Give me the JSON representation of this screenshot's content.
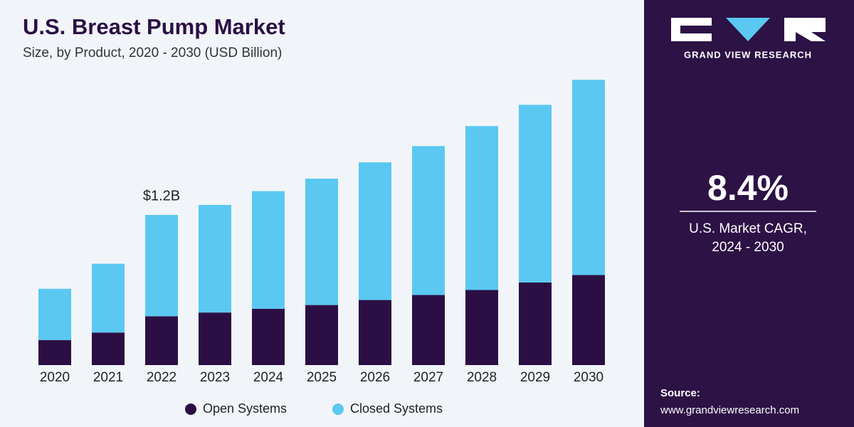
{
  "chart_data": {
    "type": "stacked_bar",
    "title": "U.S. Breast Pump Market",
    "subtitle": "Size, by Product, 2020 - 2030 (USD Billion)",
    "categories": [
      "2020",
      "2021",
      "2022",
      "2023",
      "2024",
      "2025",
      "2026",
      "2027",
      "2028",
      "2029",
      "2030"
    ],
    "series": [
      {
        "name": "Open Systems",
        "color": "#2b0f44",
        "values": [
          0.2,
          0.26,
          0.39,
          0.42,
          0.45,
          0.48,
          0.52,
          0.56,
          0.6,
          0.66,
          0.72
        ]
      },
      {
        "name": "Closed Systems",
        "color": "#5bc8f2",
        "values": [
          0.41,
          0.55,
          0.81,
          0.86,
          0.94,
          1.01,
          1.1,
          1.19,
          1.31,
          1.42,
          1.56
        ]
      }
    ],
    "annotations": [
      {
        "x": "2022",
        "value": 1.2,
        "label": "$1.2B"
      }
    ],
    "ylim": [
      0,
      2.4
    ],
    "legend": "bottom"
  },
  "sidebar": {
    "brand": "GRAND VIEW RESEARCH",
    "cagr": "8.4%",
    "cagr_label": [
      "U.S. Market CAGR,",
      "2024 - 2030"
    ],
    "source_label": "Source:",
    "source_url": "www.grandviewresearch.com"
  }
}
